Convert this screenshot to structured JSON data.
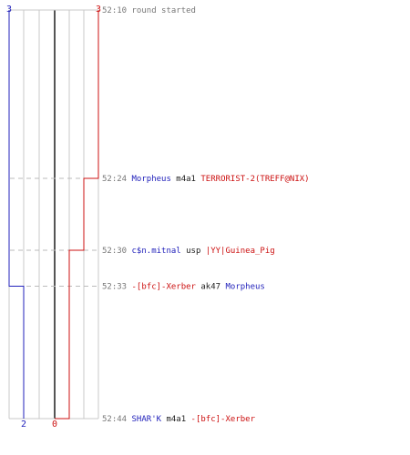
{
  "colors": {
    "team_a": "#2222bb",
    "team_b": "#cc1111",
    "grid": "#c8c8c8",
    "center_line": "#555555",
    "guide": "#bbbbbb",
    "time_text": "#777777",
    "neutral_text": "#222222"
  },
  "timeline": {
    "start_time": "52:10",
    "end_time": "52:44",
    "team_a_start": "3",
    "team_b_start": "3",
    "team_a_end": "2",
    "team_b_end": "0"
  },
  "events": [
    {
      "time": "52:10",
      "segments": [
        {
          "text": "round started",
          "role": "system"
        }
      ],
      "team_a_after": 3,
      "team_b_after": 3
    },
    {
      "time": "52:24",
      "segments": [
        {
          "text": "Morpheus",
          "role": "team_a"
        },
        {
          "text": " m4a1 ",
          "role": "neutral"
        },
        {
          "text": "TERRORIST-2(TREFF@NIX)",
          "role": "team_b"
        }
      ],
      "team_a_after": 3,
      "team_b_after": 2
    },
    {
      "time": "52:30",
      "segments": [
        {
          "text": "c$n.mitnal",
          "role": "team_a"
        },
        {
          "text": " usp ",
          "role": "neutral"
        },
        {
          "text": "|YY|Guinea_Pig",
          "role": "team_b"
        }
      ],
      "team_a_after": 3,
      "team_b_after": 1
    },
    {
      "time": "52:33",
      "segments": [
        {
          "text": "-[bfc]-Xerber",
          "role": "team_b"
        },
        {
          "text": " ak47 ",
          "role": "neutral"
        },
        {
          "text": "Morpheus",
          "role": "team_a"
        }
      ],
      "team_a_after": 2,
      "team_b_after": 1
    },
    {
      "time": "52:44",
      "segments": [
        {
          "text": "SHAR'K",
          "role": "team_a"
        },
        {
          "text": " m4a1 ",
          "role": "neutral"
        },
        {
          "text": "-[bfc]-Xerber",
          "role": "team_b"
        }
      ],
      "team_a_after": 2,
      "team_b_after": 0
    }
  ]
}
